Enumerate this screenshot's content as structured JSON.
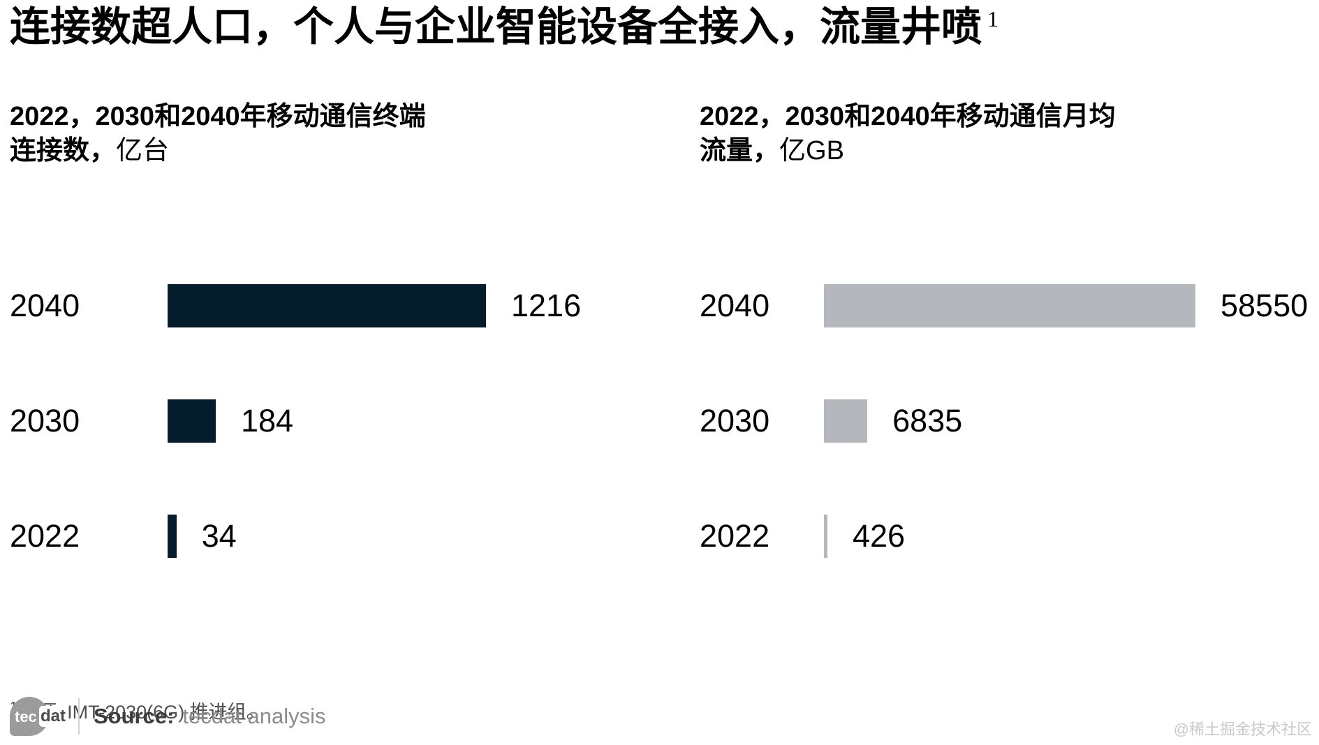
{
  "title": {
    "text": "连接数超人口，个人与企业智能设备全接入，流量井喷",
    "superscript": "1"
  },
  "charts": [
    {
      "id": "connections",
      "subtitle_line1": "2022，2030和2040年移动通信终端",
      "subtitle_line2_bold": "连接数，",
      "subtitle_line2_unit": "亿台",
      "bar_color": "#051c2c",
      "max_value": 1216,
      "rows": [
        {
          "year": "2040",
          "value": 1216,
          "label": "1216"
        },
        {
          "year": "2030",
          "value": 184,
          "label": "184"
        },
        {
          "year": "2022",
          "value": 34,
          "label": "34"
        }
      ]
    },
    {
      "id": "traffic",
      "subtitle_line1": "2022，2030和2040年移动通信月均",
      "subtitle_line2_bold": "流量，",
      "subtitle_line2_unit": "亿GB",
      "bar_color": "#b4b7bb",
      "max_value": 58550,
      "rows": [
        {
          "year": "2040",
          "value": 58550,
          "label": "58550"
        },
        {
          "year": "2030",
          "value": 6835,
          "label": "6835"
        },
        {
          "year": "2022",
          "value": 426,
          "label": "426"
        }
      ]
    }
  ],
  "footnote": {
    "superscript": "1",
    "text": "来源 :IMT-2030(6G) 推进组。"
  },
  "footer": {
    "logo_tec": "tec",
    "logo_dat": "dat",
    "source_label": "Source:",
    "source_text": "tecdat analysis"
  },
  "watermark": "@稀土掘金技术社区",
  "chart_data": [
    {
      "type": "bar",
      "orientation": "horizontal",
      "title": "2022，2030和2040年移动通信终端连接数，亿台",
      "categories": [
        "2040",
        "2030",
        "2022"
      ],
      "values": [
        1216,
        184,
        34
      ],
      "unit": "亿台",
      "bar_color": "#051c2c",
      "xlim": [
        0,
        1216
      ],
      "grid": false,
      "legend": false,
      "value_labels": "right of bar"
    },
    {
      "type": "bar",
      "orientation": "horizontal",
      "title": "2022，2030和2040年移动通信月均流量，亿GB",
      "categories": [
        "2040",
        "2030",
        "2022"
      ],
      "values": [
        58550,
        6835,
        426
      ],
      "unit": "亿GB",
      "bar_color": "#b4b7bb",
      "xlim": [
        0,
        58550
      ],
      "grid": false,
      "legend": false,
      "value_labels": "right of bar"
    }
  ]
}
